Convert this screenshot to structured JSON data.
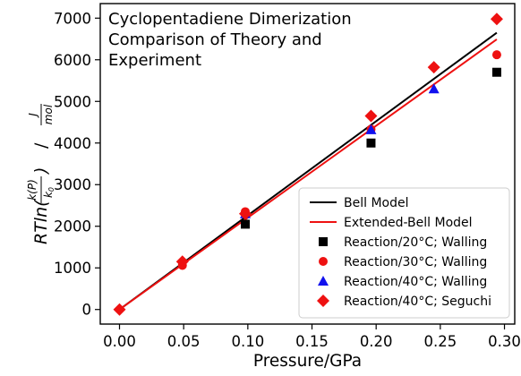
{
  "chart_data": {
    "type": "scatter",
    "title_lines": [
      "Cyclopentadiene Dimerization",
      "Comparison of Theory and",
      "Experiment"
    ],
    "xlabel": "Pressure/GPa",
    "ylabel": {
      "prefix": "RTln(",
      "frac_num": "k(P)",
      "frac_den": "k0",
      "frac_den_main": "k",
      "frac_den_sub": "0",
      "suffix": ")",
      "slash": "/",
      "unit_num": "J",
      "unit_den": "mol"
    },
    "xlim": [
      -0.015,
      0.308
    ],
    "ylim": [
      -350,
      7350
    ],
    "xticks": [
      0.0,
      0.05,
      0.1,
      0.15,
      0.2,
      0.25,
      0.3
    ],
    "xtick_labels": [
      "0.00",
      "0.05",
      "0.10",
      "0.15",
      "0.20",
      "0.25",
      "0.30"
    ],
    "yticks": [
      0,
      1000,
      2000,
      3000,
      4000,
      5000,
      6000,
      7000
    ],
    "ytick_labels": [
      "0",
      "1000",
      "2000",
      "3000",
      "4000",
      "5000",
      "6000",
      "7000"
    ],
    "grid": false,
    "legend_position": "lower-right",
    "series": [
      {
        "name": "Bell Model",
        "kind": "line",
        "color": "#000000",
        "x": [
          0.0,
          0.294
        ],
        "y": [
          0,
          6650
        ]
      },
      {
        "name": "Extended-Bell Model",
        "kind": "line",
        "color": "#ee1111",
        "x": [
          0.0,
          0.294
        ],
        "y": [
          0,
          6490
        ]
      },
      {
        "name": "Reaction/20°C; Walling",
        "kind": "marker",
        "marker": "square",
        "color": "#000000",
        "x": [
          0.098,
          0.196,
          0.294
        ],
        "y": [
          2050,
          4000,
          5700
        ]
      },
      {
        "name": "Reaction/30°C; Walling",
        "kind": "marker",
        "marker": "circle",
        "color": "#ee1111",
        "x": [
          0.049,
          0.098,
          0.196,
          0.294
        ],
        "y": [
          1060,
          2350,
          4330,
          6120
        ]
      },
      {
        "name": "Reaction/40°C; Walling",
        "kind": "marker",
        "marker": "triangle",
        "color": "#1111ee",
        "x": [
          0.098,
          0.196,
          0.245
        ],
        "y": [
          2300,
          4320,
          5300
        ]
      },
      {
        "name": "Reaction/40°C; Seguchi",
        "kind": "marker",
        "marker": "diamond",
        "color": "#ee1111",
        "x": [
          0.0,
          0.049,
          0.098,
          0.196,
          0.245,
          0.294
        ],
        "y": [
          0,
          1150,
          2300,
          4650,
          5820,
          6980
        ]
      }
    ]
  }
}
